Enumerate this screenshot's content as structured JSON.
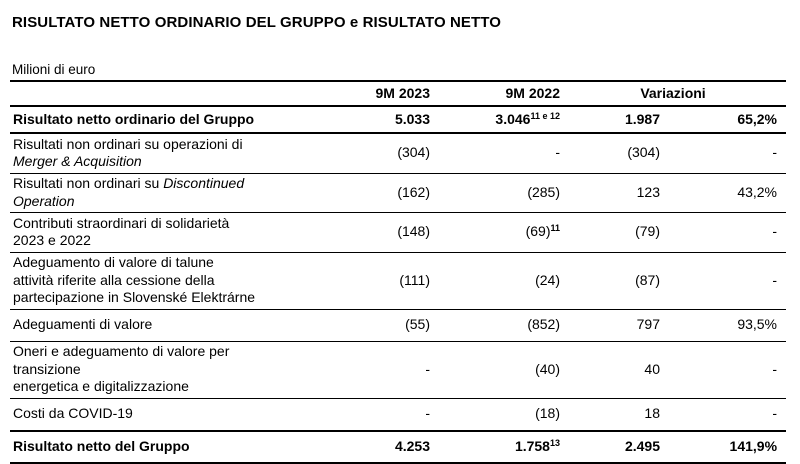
{
  "page": {
    "title": "RISULTATO NETTO ORDINARIO DEL GRUPPO e RISULTATO NETTO",
    "unit_label": "Milioni di euro"
  },
  "table": {
    "header": {
      "col_9m2023": "9M 2023",
      "col_9m2022": "9M 2022",
      "col_variazioni": "Variazioni"
    },
    "rows": [
      {
        "bold": true,
        "label_lines": [
          [
            {
              "text": "Risultato netto ordinario del Gruppo",
              "italic": false
            }
          ]
        ],
        "v2023": "5.033",
        "v2022": "3.046",
        "v2022_sup": "11 e 12",
        "var_abs": "1.987",
        "var_pct": "65,2%"
      },
      {
        "bold": false,
        "label_lines": [
          [
            {
              "text": "Risultati non ordinari su operazioni di",
              "italic": false
            }
          ],
          [
            {
              "text": "Merger & Acquisition",
              "italic": true
            }
          ]
        ],
        "v2023": "(304)",
        "v2022": "-",
        "var_abs": "(304)",
        "var_pct": "-"
      },
      {
        "bold": false,
        "label_lines": [
          [
            {
              "text": "Risultati non ordinari su ",
              "italic": false
            },
            {
              "text": "Discontinued",
              "italic": true
            }
          ],
          [
            {
              "text": "Operation",
              "italic": true
            }
          ]
        ],
        "v2023": "(162)",
        "v2022": "(285)",
        "var_abs": "123",
        "var_pct": "43,2%"
      },
      {
        "bold": false,
        "label_lines": [
          [
            {
              "text": "Contributi straordinari di solidarietà",
              "italic": false
            }
          ],
          [
            {
              "text": "2023 e 2022",
              "italic": false
            }
          ]
        ],
        "v2023": "(148)",
        "v2022": "(69)",
        "v2022_sup": "11",
        "var_abs": "(79)",
        "var_pct": "-"
      },
      {
        "bold": false,
        "label_lines": [
          [
            {
              "text": "Adeguamento di valore di talune",
              "italic": false
            }
          ],
          [
            {
              "text": "attività riferite alla cessione della",
              "italic": false
            }
          ],
          [
            {
              "text": "partecipazione in Slovenské Elektrárne",
              "italic": false
            }
          ]
        ],
        "v2023": "(111)",
        "v2022": "(24)",
        "var_abs": "(87)",
        "var_pct": "-"
      },
      {
        "bold": false,
        "label_lines": [
          [
            {
              "text": "Adeguamenti di valore",
              "italic": false
            }
          ]
        ],
        "v2023": "(55)",
        "v2022": "(852)",
        "var_abs": "797",
        "var_pct": "93,5%"
      },
      {
        "bold": false,
        "label_lines": [
          [
            {
              "text": "Oneri e adeguamento di valore per",
              "italic": false
            }
          ],
          [
            {
              "text": "transizione",
              "italic": false
            }
          ],
          [
            {
              "text": "energetica e digitalizzazione",
              "italic": false
            }
          ]
        ],
        "v2023": "-",
        "v2022": "(40)",
        "var_abs": "40",
        "var_pct": "-"
      },
      {
        "bold": false,
        "label_lines": [
          [
            {
              "text": "Costi da COVID-19",
              "italic": false
            }
          ]
        ],
        "v2023": "-",
        "v2022": "(18)",
        "var_abs": "18",
        "var_pct": "-"
      },
      {
        "bold": true,
        "total": true,
        "label_lines": [
          [
            {
              "text": "Risultato netto del Gruppo",
              "italic": false
            }
          ]
        ],
        "v2023": "4.253",
        "v2022": "1.758",
        "v2022_sup": "13",
        "var_abs": "2.495",
        "var_pct": "141,9%"
      }
    ]
  }
}
